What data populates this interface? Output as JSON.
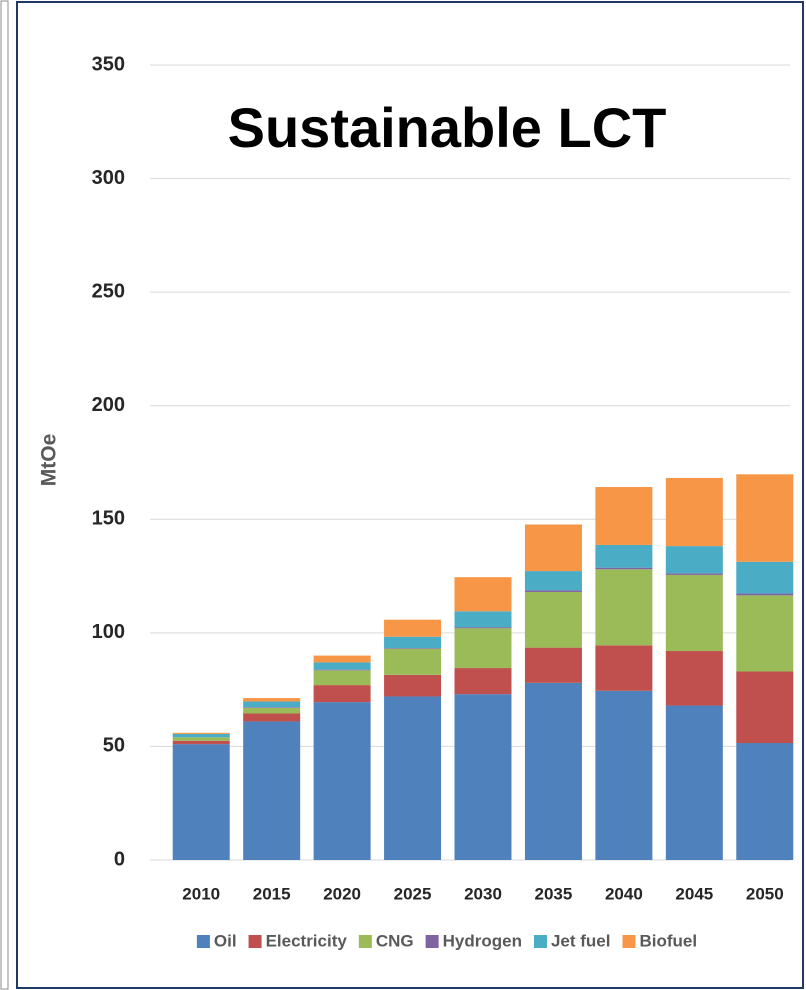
{
  "chart_data": {
    "type": "stacked_bar",
    "title": "Sustainable LCT",
    "y_label": "MtOe",
    "categories": [
      "2010",
      "2015",
      "2020",
      "2025",
      "2030",
      "2035",
      "2040",
      "2045",
      "2050"
    ],
    "series": [
      {
        "name": "Oil",
        "color": "#4f81bd",
        "values": [
          51,
          61,
          69.5,
          72,
          73,
          78,
          74.5,
          68,
          51.5
        ]
      },
      {
        "name": "Electricity",
        "color": "#c0504d",
        "values": [
          1.5,
          3.5,
          7.5,
          9.5,
          11.5,
          15.5,
          20,
          24,
          31.5
        ]
      },
      {
        "name": "CNG",
        "color": "#9bbb59",
        "values": [
          1.5,
          2.5,
          6.5,
          11.5,
          17.5,
          24.5,
          33.5,
          33.5,
          33.5
        ]
      },
      {
        "name": "Hydrogen",
        "color": "#8064a2",
        "values": [
          0,
          0.3,
          0.3,
          0.3,
          0.5,
          0.7,
          0.7,
          0.7,
          0.8
        ]
      },
      {
        "name": "Jet fuel",
        "color": "#4bacc6",
        "values": [
          1.5,
          2.5,
          3.2,
          5,
          7,
          8.5,
          10,
          12,
          14
        ]
      },
      {
        "name": "Biofuel",
        "color": "#f79646",
        "values": [
          0.5,
          1.5,
          3,
          7.5,
          15,
          20.5,
          25.5,
          30,
          38.5
        ]
      }
    ],
    "ylim": [
      0,
      350
    ],
    "yticks": [
      0,
      50,
      100,
      150,
      200,
      250,
      300,
      350
    ],
    "grid": true,
    "legend": "bottom"
  }
}
